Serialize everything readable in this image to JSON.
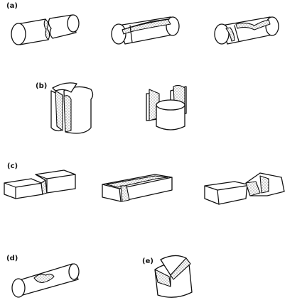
{
  "labels": {
    "a": "(a)",
    "b": "(b)",
    "c": "(c)",
    "d": "(d)",
    "e": "(e)"
  },
  "colors": {
    "ink": "#111111",
    "background": "#ffffff"
  }
}
